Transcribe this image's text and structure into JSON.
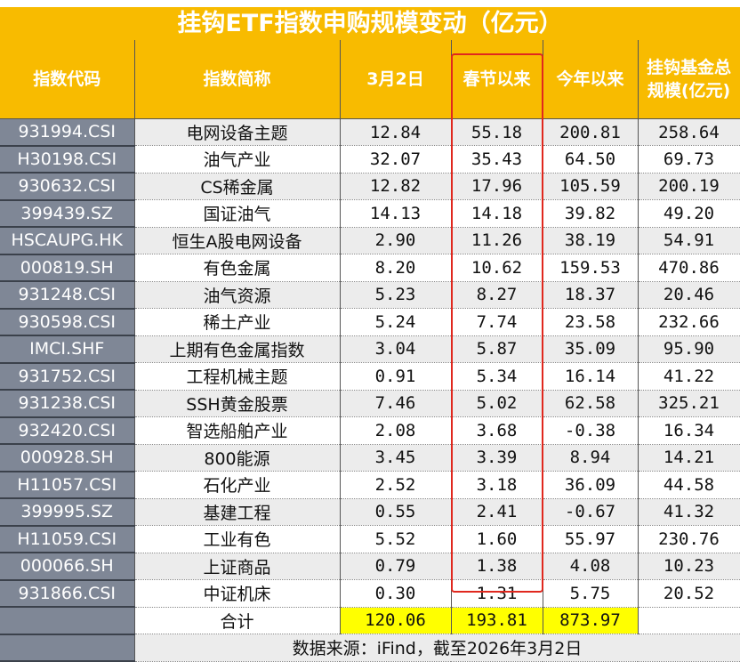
{
  "title": "挂钩ETF指数申购规模变动（亿元）",
  "headers": [
    "指数代码",
    "指数简称",
    "3月2日",
    "春节以来",
    "今年以来",
    "挂钩基金总规模(亿元)"
  ],
  "rows": [
    [
      "931994.CSI",
      "电网设备主题",
      "12.84",
      "55.18",
      "200.81",
      "258.64"
    ],
    [
      "H30198.CSI",
      "油气产业",
      "32.07",
      "35.43",
      "64.50",
      "69.73"
    ],
    [
      "930632.CSI",
      "CS稀金属",
      "12.82",
      "17.96",
      "105.59",
      "200.19"
    ],
    [
      "399439.SZ",
      "国证油气",
      "14.13",
      "14.18",
      "39.82",
      "49.20"
    ],
    [
      "HSCAUPG.HK",
      "恒生A股电网设备",
      "2.90",
      "11.26",
      "38.19",
      "54.91"
    ],
    [
      "000819.SH",
      "有色金属",
      "8.20",
      "10.62",
      "159.53",
      "470.86"
    ],
    [
      "931248.CSI",
      "油气资源",
      "5.23",
      "8.27",
      "18.37",
      "20.46"
    ],
    [
      "930598.CSI",
      "稀土产业",
      "5.24",
      "7.74",
      "23.58",
      "232.66"
    ],
    [
      "IMCI.SHF",
      "上期有色金属指数",
      "3.04",
      "5.87",
      "35.09",
      "95.90"
    ],
    [
      "931752.CSI",
      "工程机械主题",
      "0.91",
      "5.34",
      "16.14",
      "41.22"
    ],
    [
      "931238.CSI",
      "SSH黄金股票",
      "7.46",
      "5.02",
      "62.58",
      "325.21"
    ],
    [
      "932420.CSI",
      "智选船舶产业",
      "2.08",
      "3.68",
      "-0.38",
      "16.34"
    ],
    [
      "000928.SH",
      "800能源",
      "3.45",
      "3.39",
      "8.94",
      "14.21"
    ],
    [
      "H11057.CSI",
      "石化产业",
      "2.52",
      "3.18",
      "36.09",
      "44.58"
    ],
    [
      "399995.SZ",
      "基建工程",
      "0.55",
      "2.41",
      "-0.67",
      "41.32"
    ],
    [
      "H11059.CSI",
      "工业有色",
      "5.52",
      "1.60",
      "55.97",
      "230.76"
    ],
    [
      "000066.SH",
      "上证商品",
      "0.79",
      "1.38",
      "4.08",
      "10.23"
    ],
    [
      "931866.CSI",
      "中证机床",
      "0.30",
      "1.31",
      "5.75",
      "20.52"
    ]
  ],
  "total": {
    "label": "合计",
    "values": [
      "120.06",
      "193.81",
      "873.97"
    ]
  },
  "source": "数据来源：iFind，截至2026年3月2日",
  "colors": {
    "header": "#f8bb00",
    "code_column": "#7f8796",
    "highlight_box": "#e0281e",
    "total_highlight": "#ffff00"
  }
}
